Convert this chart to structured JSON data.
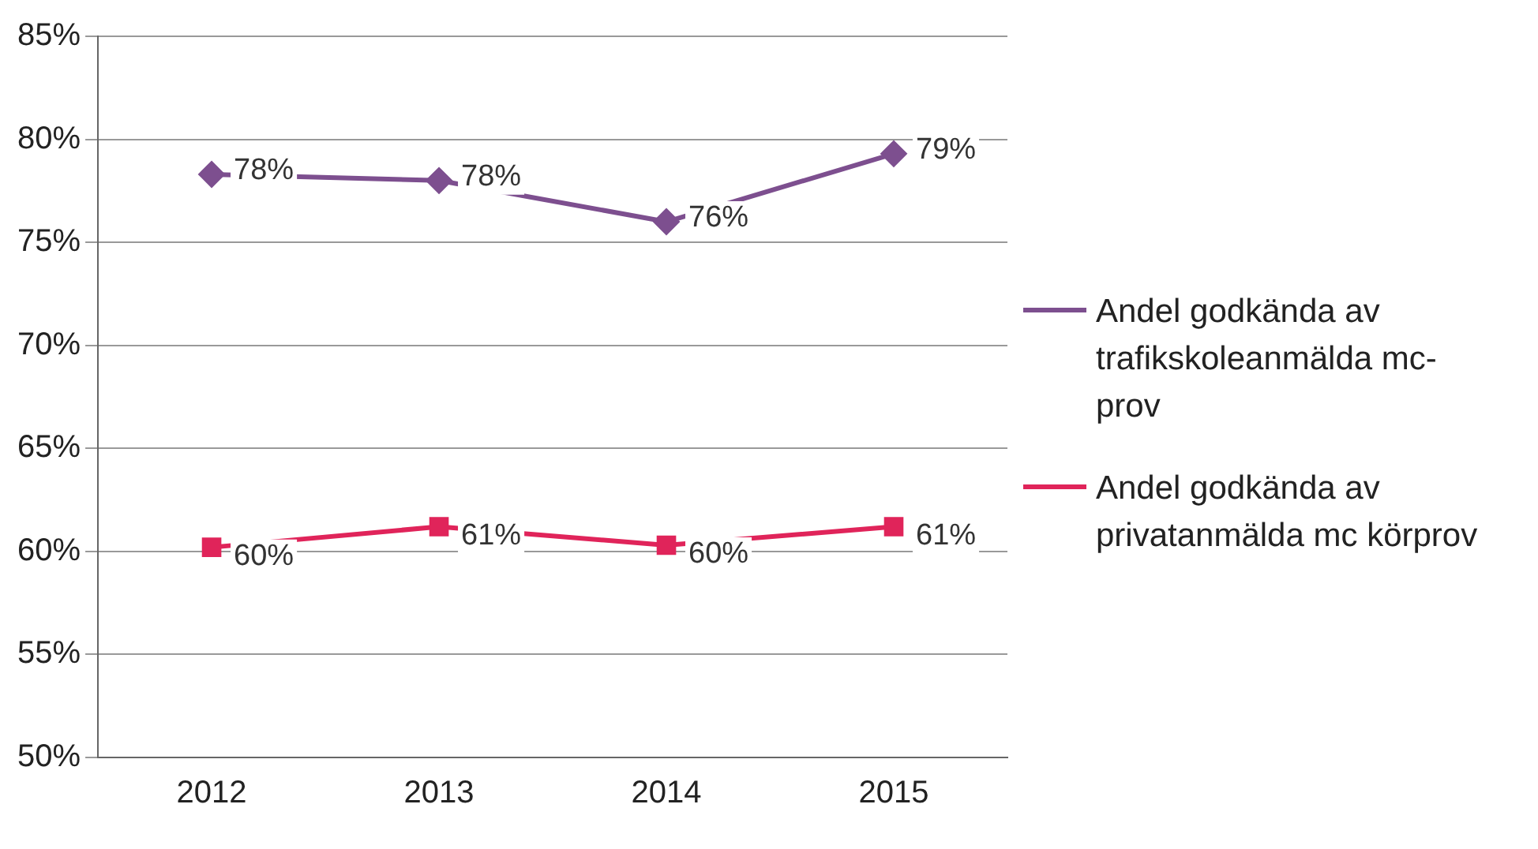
{
  "chart_data": {
    "type": "line",
    "categories": [
      "2012",
      "2013",
      "2014",
      "2015"
    ],
    "series": [
      {
        "name": "Andel godkända av trafikskoleanmälda mc-prov",
        "color": "#7d4f8f",
        "marker": "diamond",
        "values": [
          78.3,
          78,
          76,
          79.3
        ],
        "value_labels": [
          "78%",
          "78%",
          "76%",
          "79%"
        ]
      },
      {
        "name": "Andel godkända av privatanmälda mc körprov",
        "color": "#e0245a",
        "marker": "square",
        "values": [
          60.2,
          61.2,
          60.3,
          61.2
        ],
        "value_labels": [
          "60%",
          "61%",
          "60%",
          "61%"
        ]
      }
    ],
    "ylim": [
      50,
      85
    ],
    "yticks": [
      {
        "value": 50,
        "label": "50%"
      },
      {
        "value": 55,
        "label": "55%"
      },
      {
        "value": 60,
        "label": "60%"
      },
      {
        "value": 65,
        "label": "65%"
      },
      {
        "value": 70,
        "label": "70%"
      },
      {
        "value": 75,
        "label": "75%"
      },
      {
        "value": 80,
        "label": "80%"
      },
      {
        "value": 85,
        "label": "85%"
      }
    ],
    "grid": "y",
    "legend": "right"
  }
}
